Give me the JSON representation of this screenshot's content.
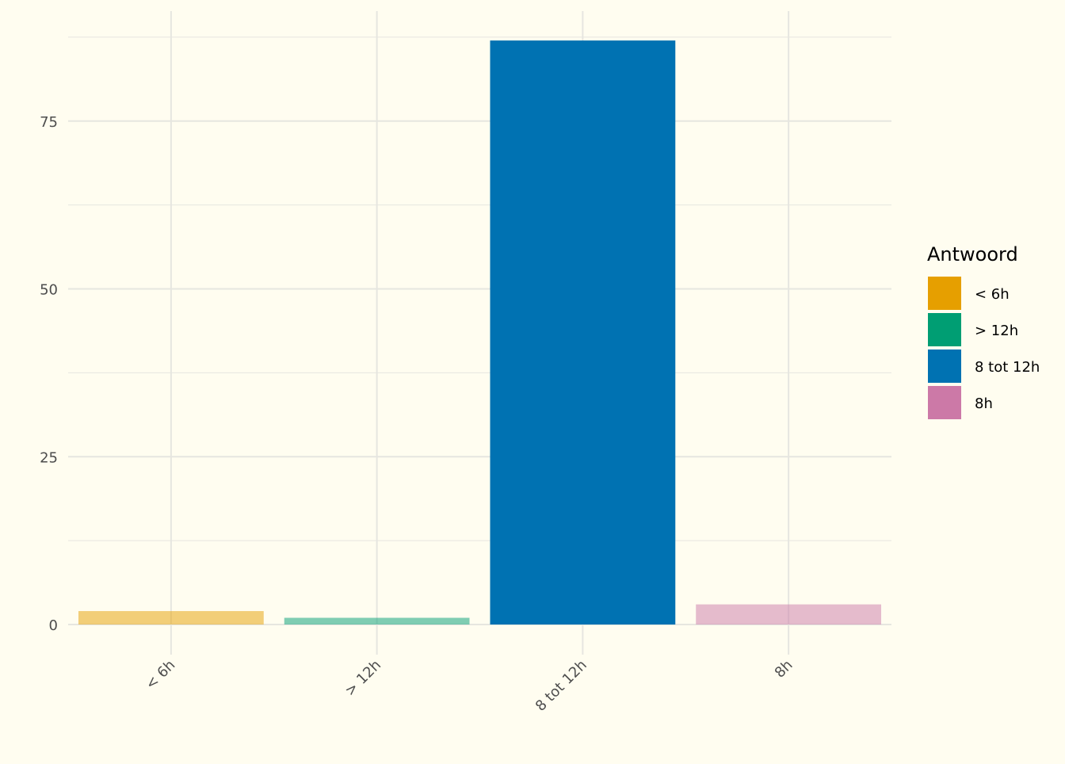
{
  "chart_data": {
    "type": "bar",
    "categories": [
      "< 6h",
      "> 12h",
      "8 tot 12h",
      "8h"
    ],
    "values": [
      2,
      1,
      87,
      3
    ],
    "ylim": [
      0,
      88
    ],
    "yticks": [
      0,
      25,
      50,
      75
    ],
    "title": "",
    "xlabel": "",
    "ylabel": "",
    "grid": true,
    "legend": {
      "title": "Antwoord",
      "placement": "right",
      "items": [
        "< 6h",
        "> 12h",
        "8 tot 12h",
        "8h"
      ]
    },
    "colors": [
      "#E69F00",
      "#009E73",
      "#0072B2",
      "#CC79A7"
    ],
    "bar_opacity": [
      0.5,
      0.5,
      1,
      0.5
    ],
    "background": "#FFFDF0",
    "gridline_color": "#E6E6E0"
  }
}
